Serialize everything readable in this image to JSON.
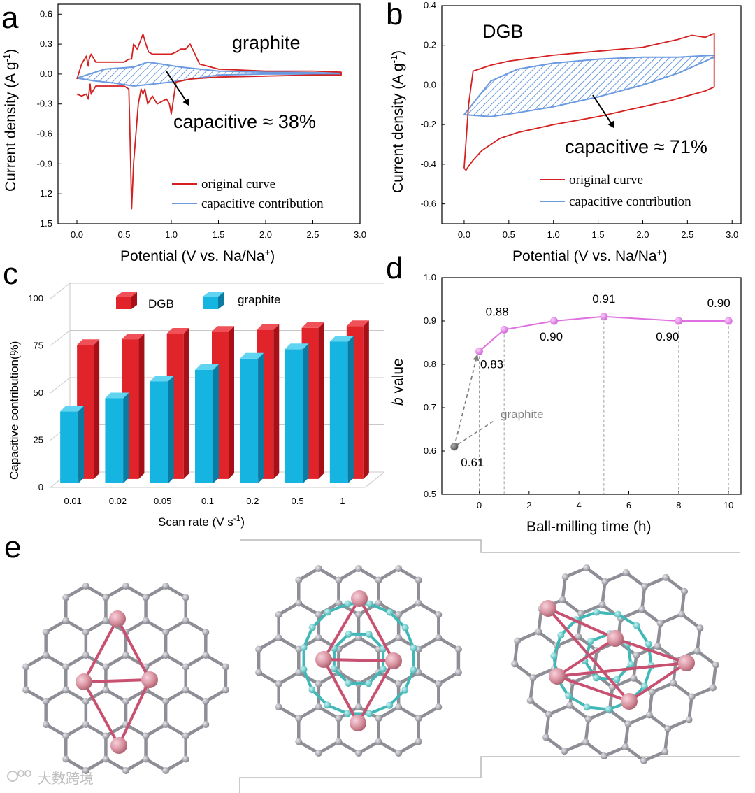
{
  "panel_labels": {
    "a": "a",
    "b": "b",
    "c": "c",
    "d": "d",
    "e": "e"
  },
  "watermark": "大数跨境",
  "chart_data": [
    {
      "id": "a",
      "type": "line",
      "annotation_title": "graphite",
      "annotation_capacitive": "capacitive ≈ 38%",
      "xlabel": "Potential (V vs. Na/Na",
      "xlabel_sup": "+",
      "xlabel_end": ")",
      "ylabel": "Current density (A g",
      "ylabel_sup": "-1",
      "ylabel_end": ")",
      "xlim": [
        -0.2,
        3.0
      ],
      "ylim": [
        -1.5,
        0.7
      ],
      "xticks": [
        "0.0",
        "0.5",
        "1.0",
        "1.5",
        "2.0",
        "2.5",
        "3.0"
      ],
      "xtick_values": [
        0,
        0.5,
        1,
        1.5,
        2,
        2.5,
        3
      ],
      "yticks": [
        "0.6",
        "0.3",
        "0.0",
        "-0.3",
        "-0.6",
        "-0.9",
        "-1.2",
        "-1.5"
      ],
      "ytick_values": [
        0.6,
        0.3,
        0,
        -0.3,
        -0.6,
        -0.9,
        -1.2,
        -1.5
      ],
      "legend": [
        "original curve",
        "capacitive contribution"
      ],
      "colors": {
        "original": "#d42020",
        "capacitive": "#6a9ae0"
      },
      "series": [
        {
          "name": "original curve",
          "x": [
            0.0,
            0.05,
            0.1,
            0.12,
            0.13,
            0.15,
            0.2,
            0.5,
            0.55,
            0.58,
            0.6,
            0.64,
            0.7,
            0.73,
            0.76,
            0.8,
            1.0,
            1.05,
            1.1,
            1.15,
            1.2,
            1.25,
            1.3,
            1.5,
            2.0,
            2.5,
            2.8,
            2.8,
            2.5,
            2.0,
            1.5,
            1.2,
            1.05,
            1.0,
            0.98,
            0.95,
            0.85,
            0.8,
            0.75,
            0.72,
            0.7,
            0.68,
            0.65,
            0.6,
            0.58,
            0.57,
            0.56,
            0.55,
            0.5,
            0.2,
            0.15,
            0.14,
            0.12,
            0.1,
            0.05,
            0.0
          ],
          "y": [
            -0.05,
            0.1,
            0.18,
            0.08,
            0.15,
            0.2,
            0.12,
            0.12,
            0.15,
            0.15,
            0.3,
            0.25,
            0.4,
            0.3,
            0.22,
            0.2,
            0.2,
            0.22,
            0.25,
            0.25,
            0.3,
            0.2,
            0.1,
            0.05,
            0.03,
            0.03,
            0.02,
            -0.01,
            -0.01,
            -0.02,
            -0.03,
            -0.05,
            -0.08,
            -0.4,
            -0.3,
            -0.25,
            -0.3,
            -0.22,
            -0.3,
            -0.15,
            -0.2,
            -0.15,
            -0.3,
            -0.9,
            -1.35,
            -0.9,
            -0.5,
            -0.15,
            -0.12,
            -0.12,
            -0.2,
            -0.1,
            -0.25,
            -0.2,
            -0.22,
            -0.2
          ]
        },
        {
          "name": "capacitive contribution",
          "x": [
            0.0,
            0.3,
            0.6,
            0.75,
            0.9,
            1.1,
            1.5,
            2.0,
            2.8,
            2.8,
            2.0,
            1.5,
            1.0,
            0.8,
            0.6,
            0.4,
            0.2,
            0.0
          ],
          "y": [
            -0.04,
            0.05,
            0.07,
            0.12,
            0.1,
            0.07,
            0.03,
            0.02,
            0.01,
            0.0,
            0.0,
            -0.01,
            -0.08,
            -0.1,
            -0.12,
            -0.09,
            -0.07,
            -0.04
          ]
        }
      ]
    },
    {
      "id": "b",
      "type": "line",
      "annotation_title": "DGB",
      "annotation_capacitive": "capacitive ≈ 71%",
      "xlabel": "Potential (V vs. Na/Na",
      "xlabel_sup": "+",
      "xlabel_end": ")",
      "ylabel": "Current density (A g",
      "ylabel_sup": "-1",
      "ylabel_end": ")",
      "xlim": [
        -0.25,
        3.1
      ],
      "ylim": [
        -0.7,
        0.4
      ],
      "xticks": [
        "0.0",
        "0.5",
        "1.0",
        "1.5",
        "2.0",
        "2.5",
        "3.0"
      ],
      "xtick_values": [
        0,
        0.5,
        1,
        1.5,
        2,
        2.5,
        3
      ],
      "yticks": [
        "0.4",
        "0.2",
        "0.0",
        "-0.2",
        "-0.4",
        "-0.6"
      ],
      "ytick_values": [
        0.4,
        0.2,
        0,
        -0.2,
        -0.4,
        -0.6
      ],
      "legend": [
        "original curve",
        "capacitive contribution"
      ],
      "colors": {
        "original": "#d42020",
        "capacitive": "#6a9ae0"
      },
      "series": [
        {
          "name": "original curve",
          "x": [
            0.0,
            0.05,
            0.1,
            0.3,
            0.5,
            1.0,
            1.5,
            2.0,
            2.4,
            2.55,
            2.7,
            2.8,
            2.8,
            2.7,
            2.3,
            1.8,
            1.5,
            1.0,
            0.6,
            0.4,
            0.2,
            0.1,
            0.05,
            0.02,
            0.0
          ],
          "y": [
            -0.42,
            -0.1,
            0.07,
            0.1,
            0.12,
            0.15,
            0.17,
            0.19,
            0.23,
            0.25,
            0.24,
            0.26,
            -0.01,
            -0.03,
            -0.08,
            -0.13,
            -0.16,
            -0.2,
            -0.24,
            -0.27,
            -0.33,
            -0.38,
            -0.41,
            -0.43,
            -0.42
          ]
        },
        {
          "name": "capacitive contribution",
          "x": [
            0.0,
            0.3,
            0.6,
            1.0,
            1.5,
            2.0,
            2.4,
            2.8,
            2.8,
            2.4,
            2.0,
            1.5,
            1.0,
            0.6,
            0.3,
            0.0
          ],
          "y": [
            -0.15,
            0.02,
            0.08,
            0.11,
            0.13,
            0.14,
            0.14,
            0.15,
            0.14,
            0.06,
            0.0,
            -0.06,
            -0.11,
            -0.14,
            -0.16,
            -0.15
          ]
        }
      ]
    },
    {
      "id": "c",
      "type": "bar",
      "xlabel": "Scan rate (V s",
      "xlabel_sup": "-1",
      "xlabel_end": ")",
      "ylabel": "Capacitive contribution(%)",
      "ylim": [
        0,
        100
      ],
      "yticks": [
        "0",
        "25",
        "50",
        "75",
        "100"
      ],
      "ytick_values": [
        0,
        25,
        50,
        75,
        100
      ],
      "categories": [
        "0.01",
        "0.02",
        "0.05",
        "0.1",
        "0.2",
        "0.5",
        "1"
      ],
      "series": [
        {
          "name": "DGB",
          "color": "#e0242a",
          "values": [
            71,
            74,
            77,
            78,
            79,
            80,
            81
          ]
        },
        {
          "name": "graphite",
          "color": "#16b4e0",
          "values": [
            38,
            45,
            54,
            60,
            66,
            71,
            75
          ]
        }
      ]
    },
    {
      "id": "d",
      "type": "line",
      "xlabel": "Ball-milling time (h)",
      "ylabel_italic": "b",
      "ylabel_rest": " value",
      "xlim": [
        -1.5,
        10.5
      ],
      "ylim": [
        0.5,
        1.0
      ],
      "xticks": [
        "0",
        "2",
        "4",
        "6",
        "8",
        "10"
      ],
      "xtick_values": [
        0,
        2,
        4,
        6,
        8,
        10
      ],
      "yticks": [
        "1.0",
        "0.9",
        "0.8",
        "0.7",
        "0.6",
        "0.5"
      ],
      "ytick_values": [
        1.0,
        0.9,
        0.8,
        0.7,
        0.6,
        0.5
      ],
      "series": [
        {
          "name": "DGB",
          "color": "#e070e0",
          "x": [
            0,
            1,
            3,
            5,
            8,
            10
          ],
          "y": [
            0.83,
            0.88,
            0.9,
            0.91,
            0.9,
            0.9
          ],
          "labels": [
            "0.83",
            "0.88",
            "0.90",
            "0.91",
            "0.90",
            "0.90"
          ]
        },
        {
          "name": "graphite",
          "color": "#707070",
          "x": [
            -1
          ],
          "y": [
            0.61
          ],
          "labels": [
            "0.61"
          ]
        }
      ],
      "graphite_label": "graphite"
    }
  ]
}
